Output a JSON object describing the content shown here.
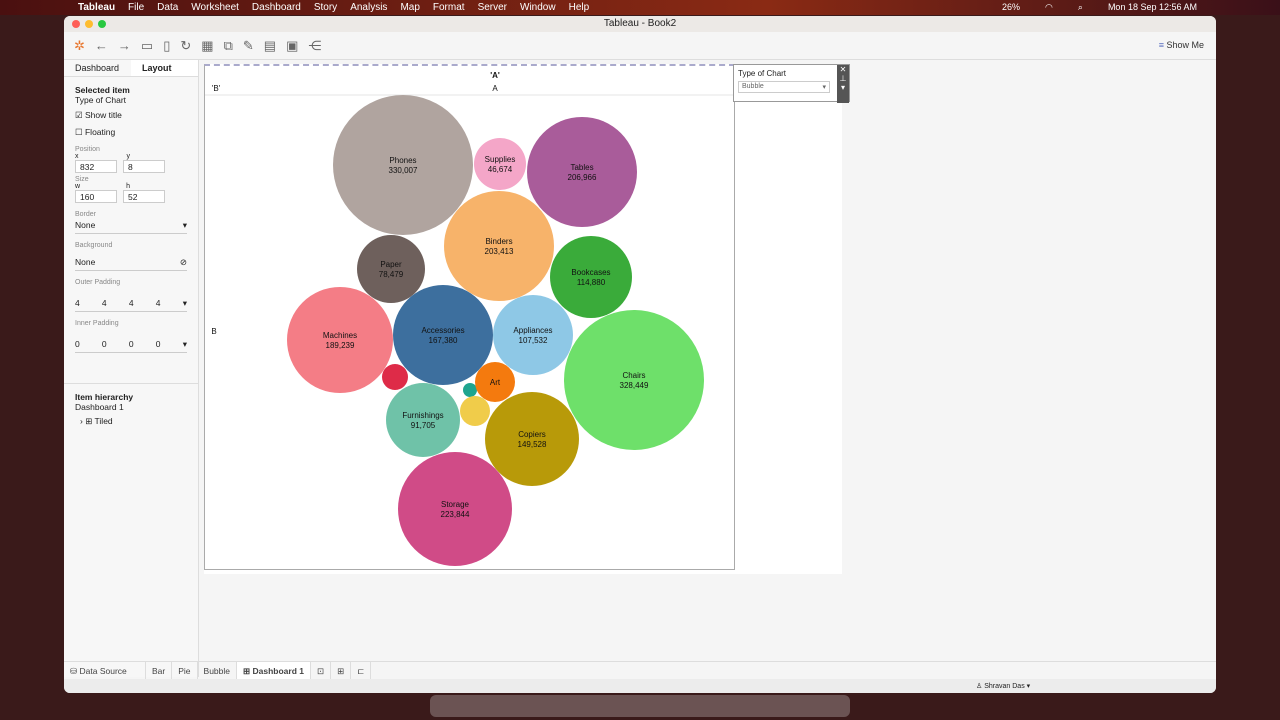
{
  "menubar": {
    "app": "Tableau",
    "items": [
      "File",
      "Data",
      "Worksheet",
      "Dashboard",
      "Story",
      "Analysis",
      "Map",
      "Format",
      "Server",
      "Window",
      "Help"
    ],
    "battery": "26%",
    "clock": "Mon 18 Sep  12:56 AM"
  },
  "window": {
    "title": "Tableau - Book2"
  },
  "toolbar": {
    "show_me": "Show Me"
  },
  "left": {
    "tabs": [
      "Dashboard",
      "Layout"
    ],
    "selected_heading": "Selected item",
    "selected_name": "Type of Chart",
    "show_title": "Show title",
    "floating": "Floating",
    "position": "Position",
    "x_label": "x",
    "y_label": "y",
    "x": "832",
    "y": "8",
    "size": "Size",
    "w_label": "w",
    "h_label": "h",
    "w": "160",
    "h": "52",
    "border": "Border",
    "border_val": "None",
    "background": "Background",
    "background_val": "None",
    "outer": "Outer Padding",
    "outer_vals": [
      "4",
      "4",
      "4",
      "4"
    ],
    "inner": "Inner Padding",
    "inner_vals": [
      "0",
      "0",
      "0",
      "0"
    ],
    "hierarchy": "Item hierarchy",
    "dash": "Dashboard 1",
    "tiled": "Tiled"
  },
  "sheet": {
    "col_header_top": "'A'",
    "col_header": "A",
    "row_header_top": "'B'",
    "row_header": "B"
  },
  "legend": {
    "title": "Type of Chart",
    "value": "Bubble"
  },
  "chart_data": {
    "type": "bubble",
    "bubbles": [
      {
        "name": "Phones",
        "label": "330,007",
        "value": 330007,
        "color": "#b0a49f"
      },
      {
        "name": "Supplies",
        "label": "46,674",
        "value": 46674,
        "color": "#f4a6c8"
      },
      {
        "name": "Tables",
        "label": "206,966",
        "value": 206966,
        "color": "#a95c9a"
      },
      {
        "name": "Binders",
        "label": "203,413",
        "value": 203413,
        "color": "#f7b36a"
      },
      {
        "name": "Paper",
        "label": "78,479",
        "value": 78479,
        "color": "#6e605c"
      },
      {
        "name": "Bookcases",
        "label": "114,880",
        "value": 114880,
        "color": "#3aab3a"
      },
      {
        "name": "Machines",
        "label": "189,239",
        "value": 189239,
        "color": "#f47d86"
      },
      {
        "name": "Accessories",
        "label": "167,380",
        "value": 167380,
        "color": "#3d6f9e"
      },
      {
        "name": "Appliances",
        "label": "107,532",
        "value": 107532,
        "color": "#8ec8e6"
      },
      {
        "name": "Chairs",
        "label": "328,449",
        "value": 328449,
        "color": "#6ee06a"
      },
      {
        "name": "",
        "label": "",
        "value": null,
        "color": "#de2b48"
      },
      {
        "name": "",
        "label": "",
        "value": null,
        "color": "#1fa58f"
      },
      {
        "name": "Art",
        "label": "",
        "value": null,
        "color": "#f47a0e"
      },
      {
        "name": "",
        "label": "",
        "value": null,
        "color": "#f0cc4a"
      },
      {
        "name": "Furnishings",
        "label": "91,705",
        "value": 91705,
        "color": "#6fc2a8"
      },
      {
        "name": "Copiers",
        "label": "149,528",
        "value": 149528,
        "color": "#b89a09"
      },
      {
        "name": "Storage",
        "label": "223,844",
        "value": 223844,
        "color": "#d04b87"
      }
    ]
  },
  "sheet_tabs": {
    "data_source": "Data Source",
    "tabs": [
      "Bar",
      "Pie",
      "Bubble",
      "Dashboard 1"
    ]
  },
  "status": {
    "user": "Shravan Das"
  }
}
